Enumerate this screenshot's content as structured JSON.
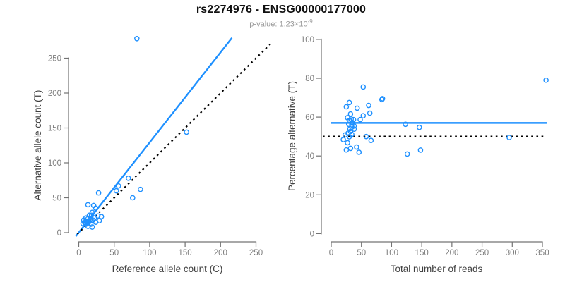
{
  "header": {
    "title": "rs2274976 - ENSG00000177000",
    "subtitle_prefix": "p-value: ",
    "pvalue_mantissa": "1.23×10",
    "pvalue_exponent": "-9"
  },
  "colors": {
    "point_blue": "#1E90FF",
    "line_blue": "#1E90FF",
    "identity_black": "#000000",
    "axis_line": "#737373",
    "tick_label": "#7d7d7d",
    "axis_title": "#3f3f3f",
    "subtitle_gray": "#9a9a9a"
  },
  "chart_data": [
    {
      "type": "scatter",
      "panel": "left",
      "xlabel": "Reference allele count (C)",
      "ylabel": "Alternative allele count (T)",
      "x_ticks": [
        0,
        50,
        100,
        150,
        200,
        250
      ],
      "y_ticks": [
        0,
        50,
        100,
        150,
        200,
        250
      ],
      "xlim": [
        0,
        250
      ],
      "ylim": [
        0,
        250
      ],
      "grid": false,
      "points": [
        [
          82,
          278
        ],
        [
          152,
          144
        ],
        [
          70,
          78
        ],
        [
          87,
          62
        ],
        [
          76,
          50
        ],
        [
          56,
          67
        ],
        [
          53,
          60
        ],
        [
          28,
          57
        ],
        [
          13,
          40
        ],
        [
          21,
          39
        ],
        [
          24,
          35
        ],
        [
          19,
          29
        ],
        [
          15,
          25
        ],
        [
          27,
          24
        ],
        [
          32,
          23
        ],
        [
          10,
          21
        ],
        [
          13,
          20
        ],
        [
          7,
          18
        ],
        [
          29,
          17
        ],
        [
          11,
          16
        ],
        [
          8,
          15
        ],
        [
          14,
          15
        ],
        [
          24,
          15
        ],
        [
          6,
          13
        ],
        [
          10,
          12
        ],
        [
          17,
          12
        ],
        [
          13,
          9
        ],
        [
          19,
          8
        ],
        [
          16,
          19
        ],
        [
          12,
          14
        ],
        [
          9,
          13
        ],
        [
          20,
          18
        ],
        [
          22,
          21
        ],
        [
          18,
          25
        ]
      ],
      "lines": [
        {
          "name": "fitted-ratio-line",
          "style": "solid",
          "color": "#1E90FF",
          "width": 2.4,
          "from": [
            -4,
            -5
          ],
          "to": [
            216,
            279
          ]
        },
        {
          "name": "identity-line",
          "style": "dotted",
          "color": "#000000",
          "width": 2.2,
          "from": [
            -2,
            -2
          ],
          "to": [
            273,
            273
          ]
        }
      ]
    },
    {
      "type": "scatter",
      "panel": "right",
      "xlabel": "Total number of reads",
      "ylabel": "Percentage alternative (T)",
      "x_ticks": [
        0,
        50,
        100,
        150,
        200,
        250,
        300,
        350
      ],
      "y_ticks": [
        0,
        20,
        40,
        60,
        80,
        100
      ],
      "xlim": [
        0,
        350
      ],
      "ylim": [
        0,
        100
      ],
      "grid": false,
      "points": [
        [
          356,
          79
        ],
        [
          295,
          49.5
        ],
        [
          148,
          43
        ],
        [
          126,
          41
        ],
        [
          146,
          54.7
        ],
        [
          123,
          56.3
        ],
        [
          85,
          69.5
        ],
        [
          53,
          75.5
        ],
        [
          84,
          69
        ],
        [
          62,
          66
        ],
        [
          64,
          62
        ],
        [
          30,
          67.5
        ],
        [
          25,
          65.3
        ],
        [
          43,
          64.6
        ],
        [
          32,
          61.6
        ],
        [
          53,
          60.7
        ],
        [
          27,
          59.7
        ],
        [
          33,
          59
        ],
        [
          37,
          58.7
        ],
        [
          30,
          58.2
        ],
        [
          48,
          58.7
        ],
        [
          35,
          57.2
        ],
        [
          29,
          56.3
        ],
        [
          34,
          56
        ],
        [
          38,
          55.4
        ],
        [
          34,
          54.8
        ],
        [
          31,
          54
        ],
        [
          38,
          53.8
        ],
        [
          32,
          52.6
        ],
        [
          28,
          51.7
        ],
        [
          23,
          50.8
        ],
        [
          34,
          51.1
        ],
        [
          30,
          49.9
        ],
        [
          20,
          48.4
        ],
        [
          27,
          46.8
        ],
        [
          58,
          50
        ],
        [
          66,
          48
        ],
        [
          25,
          43.1
        ],
        [
          32,
          43.9
        ],
        [
          42,
          44.6
        ],
        [
          46,
          41.9
        ]
      ],
      "lines": [
        {
          "name": "mean-percentage-line",
          "style": "solid",
          "color": "#1E90FF",
          "width": 2.4,
          "from": [
            0,
            57
          ],
          "to": [
            357,
            57
          ]
        },
        {
          "name": "fifty-percent-line",
          "style": "dotted",
          "color": "#000000",
          "width": 2.2,
          "from": [
            -14,
            50
          ],
          "to": [
            352,
            50
          ]
        }
      ]
    }
  ]
}
